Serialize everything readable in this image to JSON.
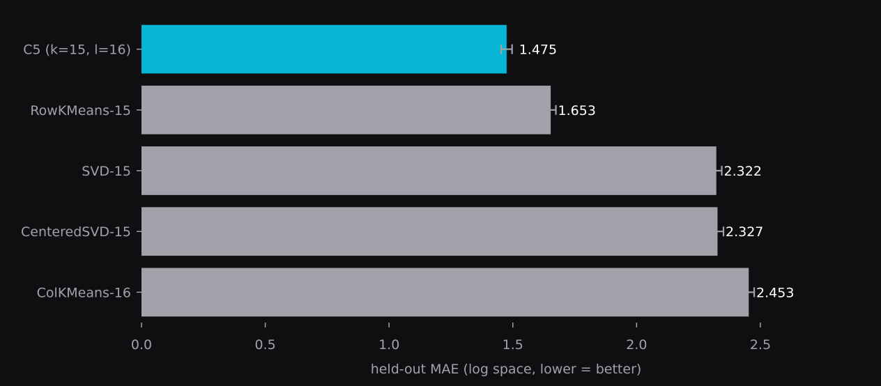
{
  "chart_data": {
    "type": "bar",
    "orientation": "horizontal",
    "categories": [
      "C5 (k=15, l=16)",
      "RowKMeans-15",
      "SVD-15",
      "CenteredSVD-15",
      "ColKMeans-16"
    ],
    "values": [
      1.475,
      1.653,
      2.322,
      2.327,
      2.453
    ],
    "value_labels": [
      "1.475",
      "1.653",
      "2.322",
      "2.327",
      "2.453"
    ],
    "error": [
      0.022,
      0.021,
      0.022,
      0.024,
      0.022
    ],
    "highlight_index": 0,
    "xlabel": "held-out MAE (log space, lower = better)",
    "xlim": [
      0,
      2.9
    ],
    "xticks": [
      0.0,
      0.5,
      1.0,
      1.5,
      2.0,
      2.5
    ],
    "xtick_labels": [
      "0.0",
      "0.5",
      "1.0",
      "1.5",
      "2.0",
      "2.5"
    ],
    "grid": false,
    "colors": {
      "background": "#0f0f11",
      "highlight": "#06b6d4",
      "bar": "#a1a1aa",
      "error": "#a1a1aa",
      "axis_text": "#a1a1aa",
      "value_text": "#ffffff"
    }
  }
}
